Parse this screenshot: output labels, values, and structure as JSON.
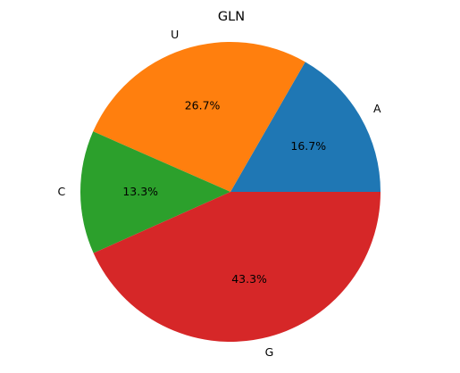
{
  "chart_data": {
    "type": "pie",
    "title": "GLN",
    "categories": [
      "A",
      "U",
      "C",
      "G"
    ],
    "values": [
      16.7,
      26.7,
      13.3,
      43.3
    ],
    "percent_labels": [
      "16.7%",
      "26.7%",
      "13.3%",
      "43.3%"
    ],
    "colors": [
      "#1f77b4",
      "#ff7f0e",
      "#2ca02c",
      "#d62728"
    ],
    "start_angle_deg": 0,
    "direction": "counterclockwise",
    "legend": "none"
  }
}
